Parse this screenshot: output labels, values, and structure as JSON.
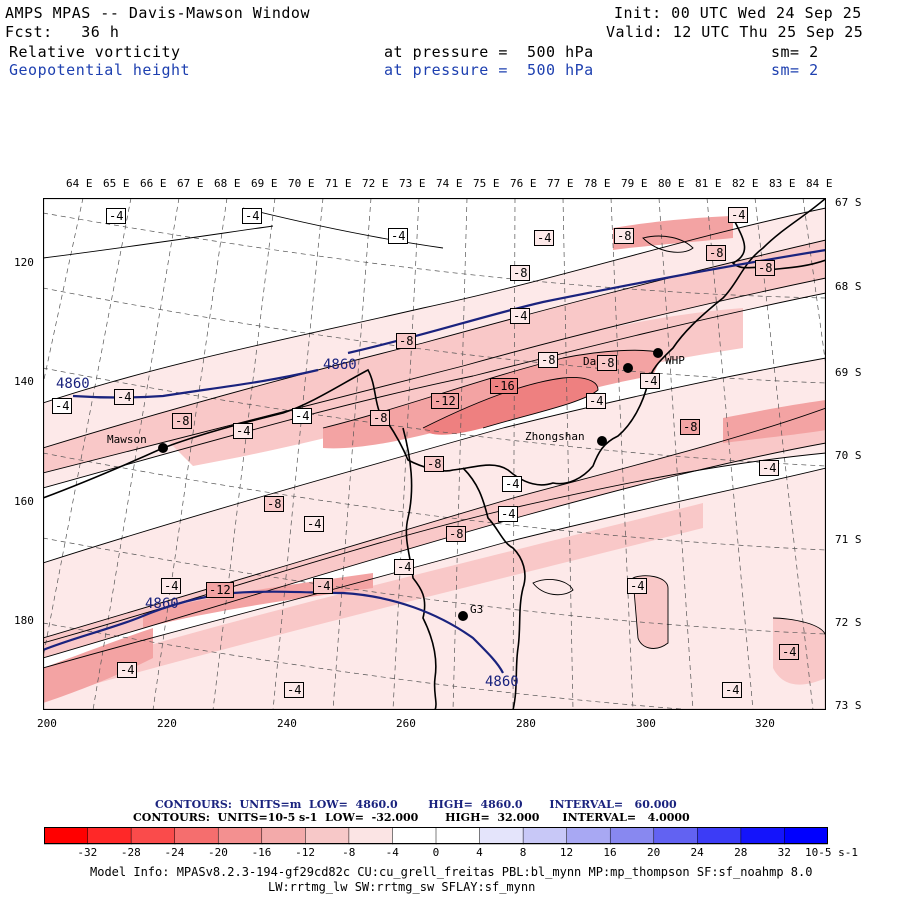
{
  "header": {
    "title": "AMPS MPAS -- Davis-Mawson Window",
    "fcst": "Fcst:   36 h",
    "init": "Init: 00 UTC Wed 24 Sep 25",
    "valid": "Valid: 12 UTC Thu 25 Sep 25",
    "field1_name": "Relative vorticity",
    "field1_level": "at pressure =  500 hPa",
    "field1_sm": "sm= 2",
    "field2_name": "Geopotential height",
    "field2_level": "at pressure =  500 hPa",
    "field2_sm": "sm= 2"
  },
  "map": {
    "top_lon_labels": [
      "64 E",
      "65 E",
      "66 E",
      "67 E",
      "68 E",
      "69 E",
      "70 E",
      "71 E",
      "72 E",
      "73 E",
      "74 E",
      "75 E",
      "76 E",
      "77 E",
      "78 E",
      "79 E",
      "80 E",
      "81 E",
      "82 E",
      "83 E",
      "84 E"
    ],
    "right_lat_labels": [
      "67 S",
      "68 S",
      "69 S",
      "70 S",
      "71 S",
      "72 S",
      "73 S"
    ],
    "left_y_ticks": [
      "120",
      "140",
      "160",
      "180"
    ],
    "bottom_x_ticks": [
      "200",
      "220",
      "240",
      "260",
      "280",
      "300",
      "320"
    ],
    "stations": [
      "Mawson",
      "Davis",
      "Zhongshan",
      "WHP",
      "G3"
    ],
    "height_contour_labels": [
      "4860",
      "4860",
      "4860",
      "4860"
    ],
    "vorticity_contour_labels": [
      "-4",
      "-4",
      "-4",
      "-8",
      "-4",
      "-8",
      "-4",
      "-8",
      "-8",
      "-4",
      "-4",
      "-8",
      "-4",
      "-8",
      "-16",
      "-12",
      "-4",
      "-4",
      "-8",
      "-8",
      "-4",
      "-4",
      "-4",
      "-4",
      "-8",
      "-4",
      "-8",
      "-12",
      "-4",
      "-8",
      "-4",
      "-4",
      "-8",
      "-4",
      "-4",
      "-4",
      "-4",
      "-4",
      "-4",
      "-8",
      "-4",
      "-8",
      "-4",
      "-4"
    ],
    "colors": {
      "height_contour": "#1a237e",
      "vort_neg_4": "#fde9e9",
      "vort_neg_8": "#f9c8c8",
      "vort_neg_12": "#f3a3a3",
      "vort_neg_16": "#ee8080"
    }
  },
  "footer": {
    "contours1": "CONTOURS:  UNITS=m  LOW=  4860.0        HIGH=  4860.0       INTERVAL=   60.000",
    "contours2": "CONTOURS:  UNITS=10-5 s-1  LOW=  -32.000       HIGH=  32.000      INTERVAL=   4.0000",
    "colorbar_labels": [
      "-32",
      "-28",
      "-24",
      "-20",
      "-16",
      "-12",
      "-8",
      "-4",
      "0",
      "4",
      "8",
      "12",
      "16",
      "20",
      "24",
      "28",
      "32"
    ],
    "colorbar_colors": [
      "#ff0000",
      "#ff2828",
      "#fa4b4b",
      "#f56e6e",
      "#f39090",
      "#f3aaaa",
      "#f7c8c8",
      "#fbe4e4",
      "#ffffff",
      "#ffffff",
      "#e4e4fb",
      "#c8c8f7",
      "#a8a8f3",
      "#8888f0",
      "#6262f2",
      "#3c3cf6",
      "#1414fb",
      "#0000ff"
    ],
    "colorbar_units": "10-5 s-1",
    "model_info1": "Model Info: MPASv8.2.3-194-gf29cd82c CU:cu_grell_freitas PBL:bl_mynn MP:mp_thompson SF:sf_noahmp 8.0",
    "model_info2": "LW:rrtmg_lw SW:rrtmg_sw SFLAY:sf_mynn"
  }
}
